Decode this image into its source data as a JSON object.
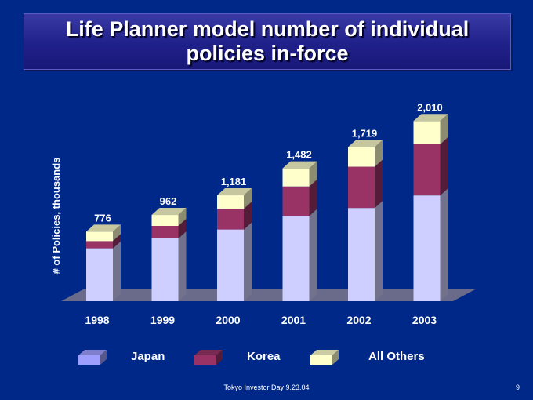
{
  "chart_data": {
    "type": "bar",
    "stacked": true,
    "title": "Life Planner model number of individual policies in-force",
    "ylabel": "# of Policies, thousands",
    "xlabel": "",
    "categories": [
      "1998",
      "1999",
      "2000",
      "2001",
      "2002",
      "2003"
    ],
    "totals": [
      "776",
      "962",
      "1,181",
      "1,482",
      "1,719",
      "2,010"
    ],
    "series": [
      {
        "name": "Japan",
        "values": [
          590,
          700,
          800,
          950,
          1040,
          1180
        ],
        "color": "#cfcfff",
        "legend_color": "#9e9eff"
      },
      {
        "name": "Korea",
        "values": [
          80,
          140,
          230,
          330,
          460,
          570
        ],
        "color": "#993366",
        "legend_color": "#993366"
      },
      {
        "name": "All Others",
        "values": [
          106,
          122,
          151,
          202,
          219,
          260
        ],
        "color": "#ffffcc",
        "legend_color": "#ffffcc"
      }
    ],
    "ylim": [
      0,
      2100
    ],
    "grid": false,
    "legend_position": "bottom",
    "style": "3d"
  },
  "footer": {
    "text": "Tokyo Investor Day 9.23.04",
    "page": "9"
  }
}
